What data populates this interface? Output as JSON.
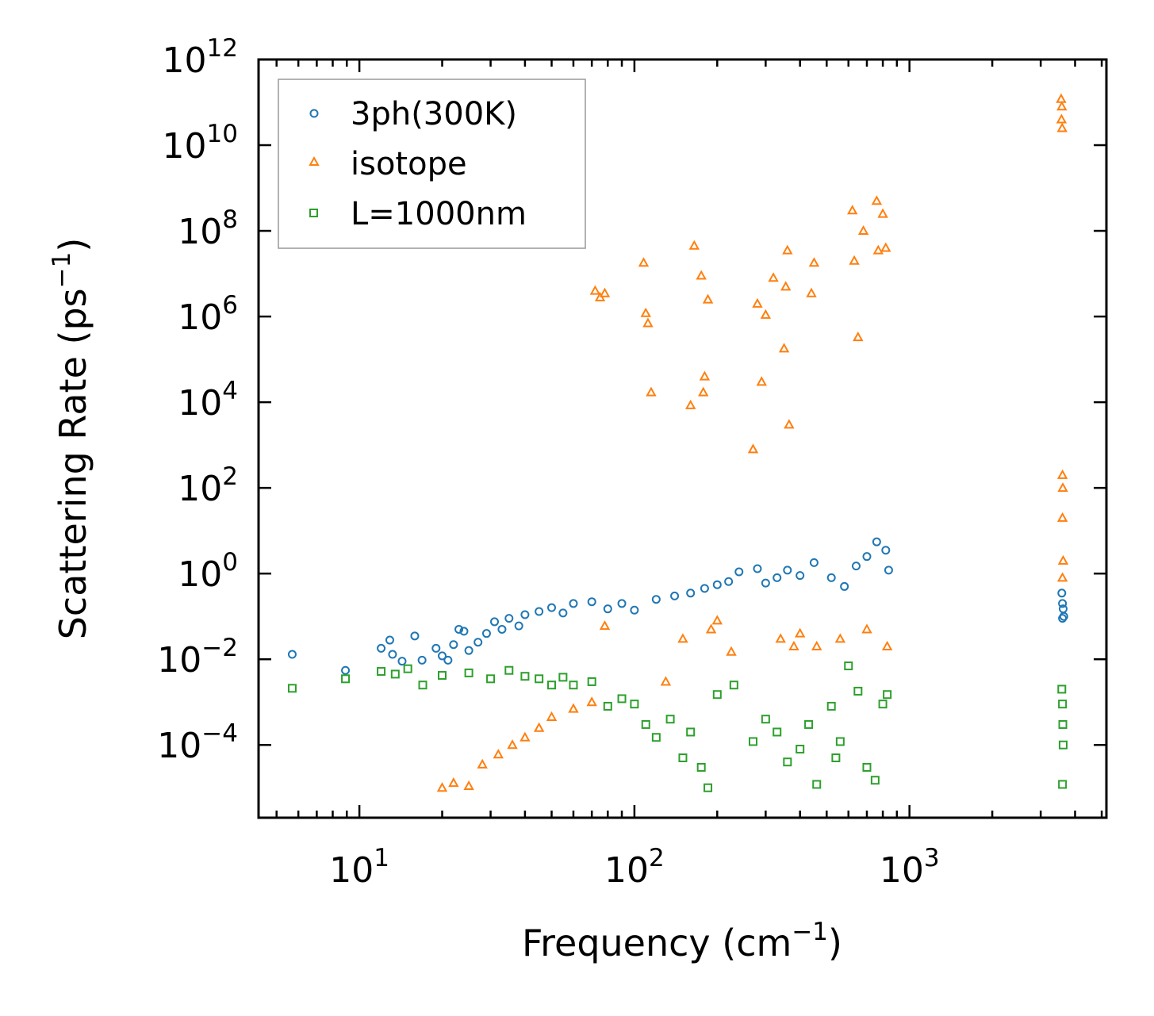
{
  "chart_data": {
    "type": "scatter",
    "xscale": "log",
    "yscale": "log",
    "xlim": [
      4.3,
      5200
    ],
    "ylim": [
      2e-06,
      1000000000000
    ],
    "xlabel": {
      "text": "Frequency (cm",
      "sup": "−1",
      "tail": ")"
    },
    "ylabel": {
      "text": "Scattering Rate (ps",
      "sup": "−1",
      "tail": ")"
    },
    "x_ticks": [
      {
        "value": 10,
        "base": "10",
        "exp": "1"
      },
      {
        "value": 100,
        "base": "10",
        "exp": "2"
      },
      {
        "value": 1000,
        "base": "10",
        "exp": "3"
      }
    ],
    "y_ticks": [
      {
        "value": 0.0001,
        "base": "10",
        "exp": "−4"
      },
      {
        "value": 0.01,
        "base": "10",
        "exp": "−2"
      },
      {
        "value": 1,
        "base": "10",
        "exp": "0"
      },
      {
        "value": 100,
        "base": "10",
        "exp": "2"
      },
      {
        "value": 10000,
        "base": "10",
        "exp": "4"
      },
      {
        "value": 1000000,
        "base": "10",
        "exp": "6"
      },
      {
        "value": 100000000,
        "base": "10",
        "exp": "8"
      },
      {
        "value": 10000000000,
        "base": "10",
        "exp": "10"
      },
      {
        "value": 1000000000000,
        "base": "10",
        "exp": "12"
      }
    ],
    "legend_position": "top-left",
    "series": [
      {
        "name": "3ph(300K)",
        "marker": "circle",
        "color": "#1f77b4",
        "points": [
          [
            5.7,
            0.013
          ],
          [
            8.9,
            0.0055
          ],
          [
            12.0,
            0.018
          ],
          [
            12.9,
            0.028
          ],
          [
            13.2,
            0.013
          ],
          [
            14.3,
            0.009
          ],
          [
            15.9,
            0.035
          ],
          [
            16.9,
            0.0095
          ],
          [
            19.0,
            0.018
          ],
          [
            20.0,
            0.012
          ],
          [
            21.0,
            0.0095
          ],
          [
            22.0,
            0.022
          ],
          [
            23.0,
            0.05
          ],
          [
            24.0,
            0.045
          ],
          [
            25.0,
            0.016
          ],
          [
            27.0,
            0.025
          ],
          [
            29.0,
            0.04
          ],
          [
            31.0,
            0.075
          ],
          [
            33.0,
            0.05
          ],
          [
            35.0,
            0.09
          ],
          [
            38.0,
            0.06
          ],
          [
            40.0,
            0.11
          ],
          [
            45.0,
            0.13
          ],
          [
            50.0,
            0.16
          ],
          [
            55.0,
            0.12
          ],
          [
            60.0,
            0.2
          ],
          [
            70.0,
            0.22
          ],
          [
            80.0,
            0.15
          ],
          [
            90.0,
            0.2
          ],
          [
            100.0,
            0.14
          ],
          [
            120.0,
            0.25
          ],
          [
            140.0,
            0.3
          ],
          [
            160.0,
            0.35
          ],
          [
            180.0,
            0.45
          ],
          [
            200.0,
            0.55
          ],
          [
            220.0,
            0.65
          ],
          [
            240.0,
            1.1
          ],
          [
            280.0,
            1.3
          ],
          [
            300.0,
            0.6
          ],
          [
            330.0,
            0.8
          ],
          [
            360.0,
            1.2
          ],
          [
            400.0,
            0.9
          ],
          [
            450.0,
            1.8
          ],
          [
            520.0,
            0.8
          ],
          [
            580.0,
            0.5
          ],
          [
            640.0,
            1.5
          ],
          [
            700.0,
            2.5
          ],
          [
            760.0,
            5.5
          ],
          [
            820.0,
            3.5
          ],
          [
            840.0,
            1.2
          ],
          [
            3580.0,
            0.35
          ],
          [
            3600.0,
            0.2
          ],
          [
            3620.0,
            0.15
          ],
          [
            3640.0,
            0.1
          ],
          [
            3600.0,
            0.09
          ]
        ]
      },
      {
        "name": "isotope",
        "marker": "triangle",
        "color": "#ff7f0e",
        "points": [
          [
            20.0,
            1e-05
          ],
          [
            22.0,
            1.3e-05
          ],
          [
            25.0,
            1.1e-05
          ],
          [
            28.0,
            3.5e-05
          ],
          [
            32.0,
            6e-05
          ],
          [
            36.0,
            0.0001
          ],
          [
            40.0,
            0.00015
          ],
          [
            45.0,
            0.00025
          ],
          [
            50.0,
            0.00045
          ],
          [
            60.0,
            0.0007
          ],
          [
            70.0,
            0.001
          ],
          [
            78.0,
            0.06
          ],
          [
            72.0,
            4000000
          ],
          [
            75.0,
            2800000
          ],
          [
            78.0,
            3500000
          ],
          [
            108.0,
            18000000
          ],
          [
            110.0,
            1200000
          ],
          [
            112.0,
            700000
          ],
          [
            115.0,
            17000
          ],
          [
            130.0,
            0.003
          ],
          [
            150.0,
            0.03
          ],
          [
            160.0,
            8500
          ],
          [
            165.0,
            45000000
          ],
          [
            175.0,
            9000000
          ],
          [
            178.0,
            17000
          ],
          [
            180.0,
            40000
          ],
          [
            185.0,
            2500000
          ],
          [
            190.0,
            0.05
          ],
          [
            200.0,
            0.08
          ],
          [
            225.0,
            0.015
          ],
          [
            270.0,
            800
          ],
          [
            280.0,
            2000000
          ],
          [
            290.0,
            30000
          ],
          [
            300.0,
            1100000
          ],
          [
            320.0,
            8000000
          ],
          [
            340.0,
            0.03
          ],
          [
            350.0,
            180000
          ],
          [
            355.0,
            5000000
          ],
          [
            360.0,
            35000000
          ],
          [
            365.0,
            3000
          ],
          [
            380.0,
            0.02
          ],
          [
            400.0,
            0.04
          ],
          [
            440.0,
            3500000
          ],
          [
            450.0,
            18000000
          ],
          [
            460.0,
            0.02
          ],
          [
            560.0,
            0.03
          ],
          [
            620.0,
            300000000
          ],
          [
            630.0,
            20000000
          ],
          [
            650.0,
            330000
          ],
          [
            680.0,
            100000000
          ],
          [
            700.0,
            0.05
          ],
          [
            760.0,
            500000000
          ],
          [
            770.0,
            35000000
          ],
          [
            800.0,
            250000000
          ],
          [
            820.0,
            40000000
          ],
          [
            830.0,
            0.02
          ],
          [
            3560.0,
            120000000000
          ],
          [
            3580.0,
            80000000000
          ],
          [
            3570.0,
            40000000000
          ],
          [
            3590.0,
            25000000000
          ],
          [
            3600.0,
            200
          ],
          [
            3610.0,
            100
          ],
          [
            3600.0,
            20
          ],
          [
            3620.0,
            2
          ],
          [
            3600.0,
            0.8
          ]
        ]
      },
      {
        "name": "L=1000nm",
        "marker": "square",
        "color": "#2ca02c",
        "points": [
          [
            5.7,
            0.0021
          ],
          [
            8.9,
            0.0035
          ],
          [
            12.0,
            0.0052
          ],
          [
            13.5,
            0.0045
          ],
          [
            15.0,
            0.006
          ],
          [
            17.0,
            0.0025
          ],
          [
            20.0,
            0.0042
          ],
          [
            25.0,
            0.0048
          ],
          [
            30.0,
            0.0035
          ],
          [
            35.0,
            0.0055
          ],
          [
            40.0,
            0.004
          ],
          [
            45.0,
            0.0035
          ],
          [
            50.0,
            0.0025
          ],
          [
            55.0,
            0.0038
          ],
          [
            60.0,
            0.0025
          ],
          [
            70.0,
            0.003
          ],
          [
            80.0,
            0.0008
          ],
          [
            90.0,
            0.0012
          ],
          [
            100.0,
            0.0009
          ],
          [
            110.0,
            0.0003
          ],
          [
            120.0,
            0.00015
          ],
          [
            135.0,
            0.0004
          ],
          [
            150.0,
            5e-05
          ],
          [
            160.0,
            0.0002
          ],
          [
            175.0,
            3e-05
          ],
          [
            185.0,
            1e-05
          ],
          [
            200.0,
            0.0015
          ],
          [
            230.0,
            0.0025
          ],
          [
            270.0,
            0.00012
          ],
          [
            300.0,
            0.0004
          ],
          [
            330.0,
            0.0002
          ],
          [
            360.0,
            4e-05
          ],
          [
            400.0,
            8e-05
          ],
          [
            430.0,
            0.0003
          ],
          [
            460.0,
            1.2e-05
          ],
          [
            520.0,
            0.0008
          ],
          [
            540.0,
            5e-05
          ],
          [
            560.0,
            0.00012
          ],
          [
            600.0,
            0.007
          ],
          [
            650.0,
            0.0018
          ],
          [
            700.0,
            3e-05
          ],
          [
            750.0,
            1.5e-05
          ],
          [
            800.0,
            0.0009
          ],
          [
            830.0,
            0.0015
          ],
          [
            3580.0,
            0.002
          ],
          [
            3600.0,
            0.0009
          ],
          [
            3610.0,
            0.0003
          ],
          [
            3620.0,
            0.0001
          ],
          [
            3600.0,
            1.2e-05
          ]
        ]
      }
    ]
  }
}
